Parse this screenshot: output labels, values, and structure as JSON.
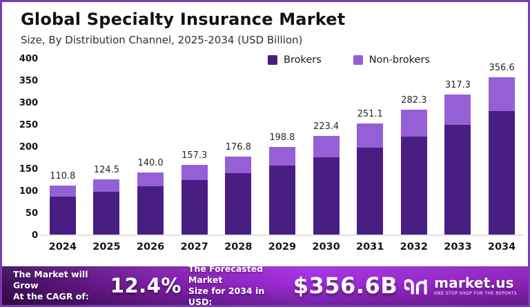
{
  "header": {
    "title": "Global Specialty Insurance Market",
    "subtitle": "Size, By Distribution Channel, 2025-2034 (USD Billion)"
  },
  "chart_data": {
    "type": "bar",
    "stacked": true,
    "categories": [
      "2024",
      "2025",
      "2026",
      "2027",
      "2028",
      "2029",
      "2030",
      "2031",
      "2032",
      "2033",
      "2034"
    ],
    "series": [
      {
        "name": "Brokers",
        "color": "#481e82",
        "values": [
          86.0,
          97.5,
          110.0,
          123.5,
          139.0,
          156.0,
          175.5,
          197.0,
          221.5,
          249.0,
          280.0
        ]
      },
      {
        "name": "Non-brokers",
        "color": "#9560d6",
        "values": [
          24.8,
          27.0,
          30.0,
          33.8,
          37.8,
          42.8,
          47.9,
          54.1,
          60.8,
          68.3,
          76.6
        ]
      }
    ],
    "totals": [
      110.8,
      124.5,
      140.0,
      157.3,
      176.8,
      198.8,
      223.4,
      251.1,
      282.3,
      317.3,
      356.6
    ],
    "total_labels": [
      "110.8",
      "124.5",
      "140.0",
      "157.3",
      "176.8",
      "198.8",
      "223.4",
      "251.1",
      "282.3",
      "317.3",
      "356.6"
    ],
    "ylim": [
      0,
      400
    ],
    "yticks": [
      0,
      50,
      100,
      150,
      200,
      250,
      300,
      350,
      400
    ],
    "grid": false,
    "legend_position": "top"
  },
  "banner": {
    "cagr_label_lines": [
      "The Market will Grow",
      "At the CAGR of:"
    ],
    "cagr_value": "12.4%",
    "forecast_label_lines": [
      "The Forecasted Market",
      "Size for 2034 in USD:"
    ],
    "forecast_value": "$356.6B",
    "brand": "market.us",
    "brand_tagline": "ONE STOP SHOP FOR THE REPORTS"
  },
  "colors": {
    "frame_border": "#7a3db0",
    "brokers": "#481e82",
    "non_brokers": "#9560d6",
    "banner_gradient_start": "#420f5d",
    "banner_gradient_end": "#8d22b8",
    "axis_line": "#e2e2e4"
  }
}
